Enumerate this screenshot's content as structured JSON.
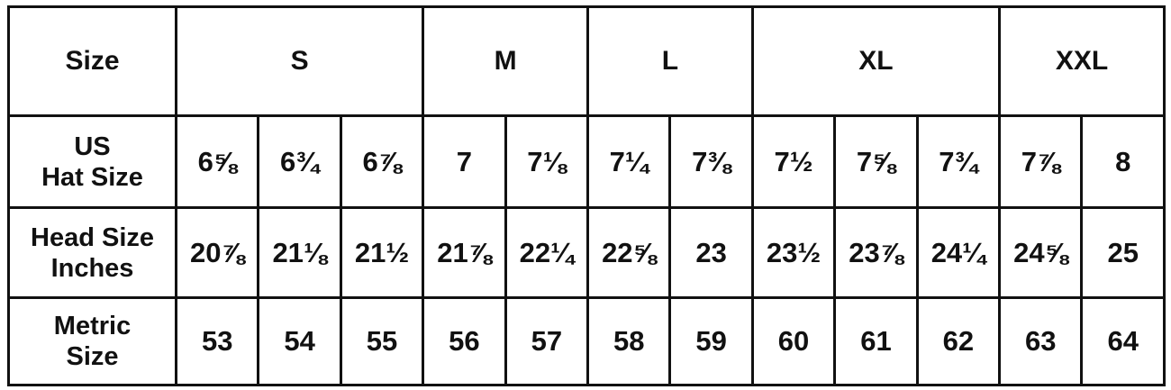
{
  "header": {
    "label": "Size",
    "groups": [
      {
        "label": "S",
        "span": 3
      },
      {
        "label": "M",
        "span": 2
      },
      {
        "label": "L",
        "span": 2
      },
      {
        "label": "XL",
        "span": 3
      },
      {
        "label": "XXL",
        "span": 2
      }
    ]
  },
  "rows": [
    {
      "label_line1": "US",
      "label_line2": "Hat Size",
      "values": [
        "6⅝",
        "6¾",
        "6⅞",
        "7",
        "7⅛",
        "7¼",
        "7⅜",
        "7½",
        "7⅝",
        "7¾",
        "7⅞",
        "8"
      ]
    },
    {
      "label_line1": "Head Size",
      "label_line2": "Inches",
      "values": [
        "20⅞",
        "21⅛",
        "21½",
        "21⅞",
        "22¼",
        "22⅝",
        "23",
        "23½",
        "23⅞",
        "24¼",
        "24⅝",
        "25"
      ]
    },
    {
      "label_line1": "Metric",
      "label_line2": "Size",
      "values": [
        "53",
        "54",
        "55",
        "56",
        "57",
        "58",
        "59",
        "60",
        "61",
        "62",
        "63",
        "64"
      ]
    }
  ]
}
